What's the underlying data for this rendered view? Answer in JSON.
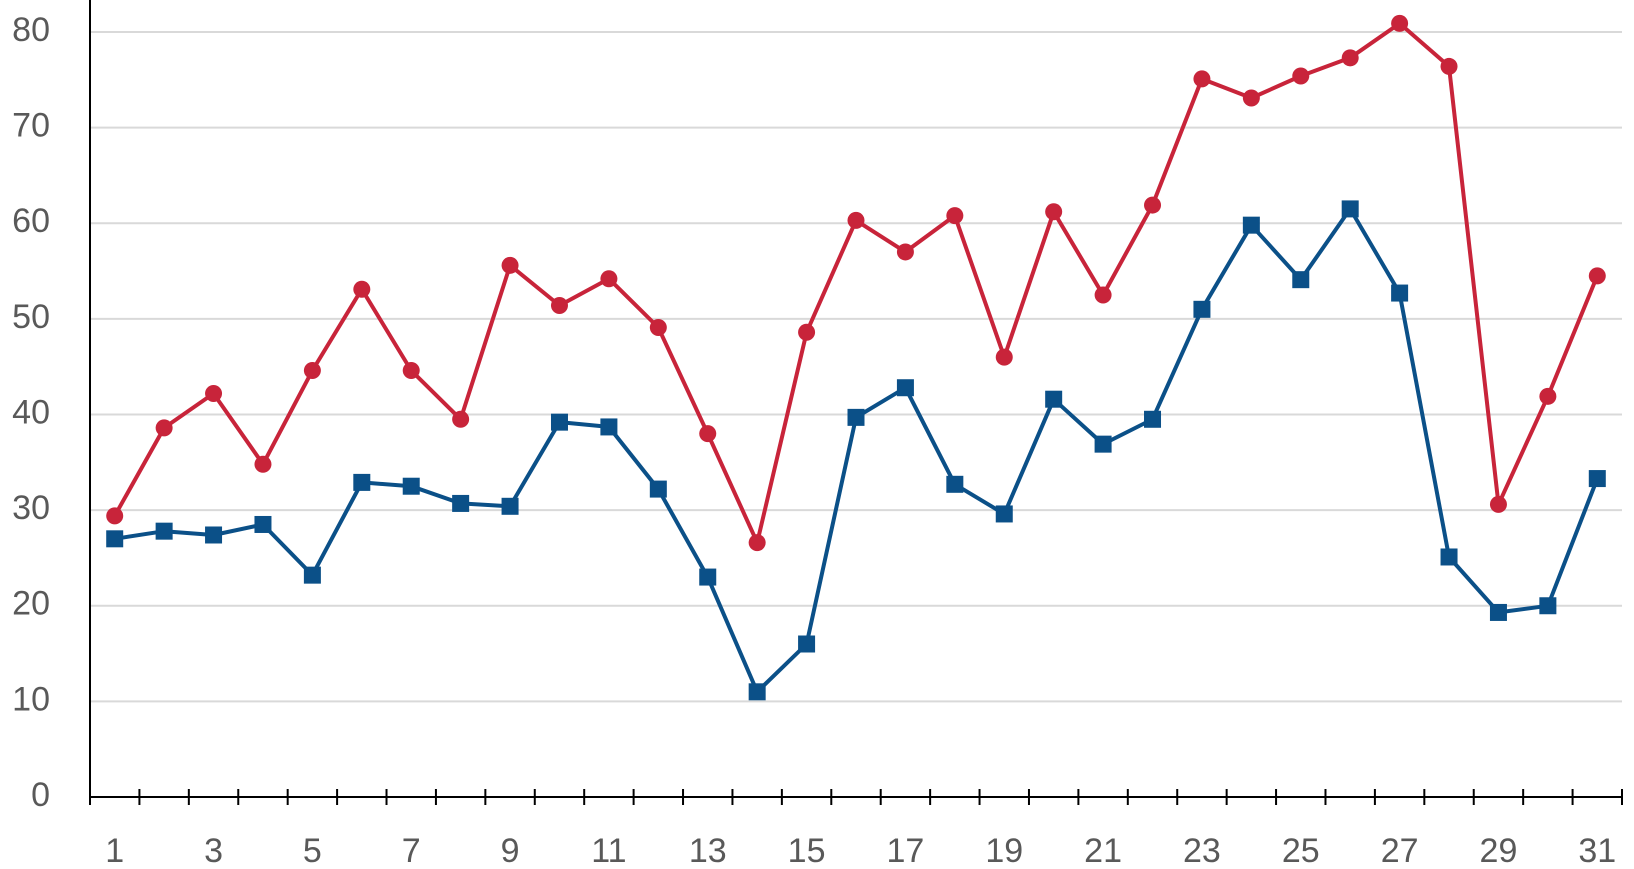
{
  "chart_data": {
    "type": "line",
    "categories": [
      "1",
      null,
      "3",
      null,
      "5",
      null,
      "7",
      null,
      "9",
      null,
      "11",
      null,
      "13",
      null,
      "15",
      null,
      "17",
      null,
      "19",
      null,
      "21",
      null,
      "23",
      null,
      "25",
      null,
      "27",
      null,
      "29",
      null,
      "31"
    ],
    "series": [
      {
        "color": "#c8243a",
        "marker": "circle",
        "values": [
          29.4,
          38.6,
          42.2,
          34.8,
          44.6,
          53.1,
          44.6,
          39.5,
          55.6,
          51.4,
          54.2,
          49.1,
          38.0,
          26.6,
          48.6,
          60.3,
          57.0,
          60.8,
          46.0,
          61.2,
          52.5,
          61.9,
          75.1,
          73.1,
          75.4,
          77.3,
          80.9,
          76.4,
          30.6,
          41.9,
          54.5
        ]
      },
      {
        "color": "#0b5088",
        "marker": "square",
        "values": [
          27.0,
          27.8,
          27.4,
          28.5,
          23.2,
          32.9,
          32.5,
          30.7,
          30.4,
          39.2,
          38.7,
          32.2,
          23.0,
          11.0,
          16.0,
          39.7,
          42.8,
          32.7,
          29.6,
          41.6,
          36.9,
          39.5,
          51.0,
          59.8,
          54.1,
          61.5,
          52.7,
          25.1,
          19.3,
          20.0,
          33.3
        ]
      }
    ],
    "ylim": [
      0,
      80
    ],
    "yticks": [
      0,
      10,
      20,
      30,
      40,
      50,
      60,
      70,
      80
    ],
    "grid": true
  }
}
